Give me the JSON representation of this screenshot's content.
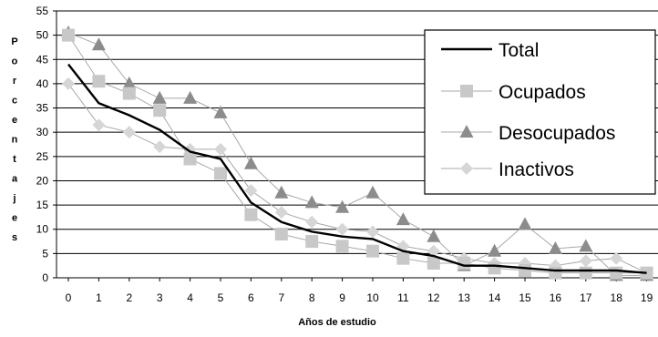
{
  "chart_data": {
    "type": "line",
    "title": "",
    "xlabel": "Años de estudio",
    "ylabel": "Porcentajes",
    "x": [
      0,
      1,
      2,
      3,
      4,
      5,
      6,
      7,
      8,
      9,
      10,
      11,
      12,
      13,
      14,
      15,
      16,
      17,
      18,
      19
    ],
    "ylim": [
      0,
      55
    ],
    "yticks": [
      0,
      5,
      10,
      15,
      20,
      25,
      30,
      35,
      40,
      45,
      50,
      55
    ],
    "grid": true,
    "legend_position": "top-right",
    "series": [
      {
        "name": "Total",
        "marker": "none",
        "color": "#000000",
        "values": [
          44,
          36,
          33.5,
          30.5,
          26,
          24.5,
          15.5,
          11.5,
          9.5,
          8.5,
          8,
          5.5,
          4.5,
          2.5,
          2.5,
          2,
          1.5,
          1.5,
          1.5,
          1
        ]
      },
      {
        "name": "Ocupados",
        "marker": "square",
        "color": "#c8c8c8",
        "values": [
          50,
          40.5,
          38,
          34.5,
          24.5,
          21.5,
          13,
          9,
          7.5,
          6.5,
          5.5,
          4,
          3,
          3,
          2,
          1.5,
          1,
          1,
          1,
          1
        ]
      },
      {
        "name": "Desocupados",
        "marker": "triangle",
        "color": "#8c8c8c",
        "values": [
          50.5,
          48,
          40,
          37,
          37,
          34,
          23.5,
          17.5,
          15.5,
          14.5,
          17.5,
          12,
          8.5,
          2.5,
          5.5,
          11,
          6,
          6.5,
          0.5,
          0.5
        ]
      },
      {
        "name": "Inactivos",
        "marker": "diamond",
        "color": "#d6d6d6",
        "values": [
          40,
          31.5,
          30,
          27,
          26.5,
          26.5,
          18,
          13.5,
          11.5,
          10,
          9.5,
          6.5,
          5.5,
          4,
          3,
          3,
          2.5,
          3.5,
          4,
          1
        ]
      }
    ]
  }
}
